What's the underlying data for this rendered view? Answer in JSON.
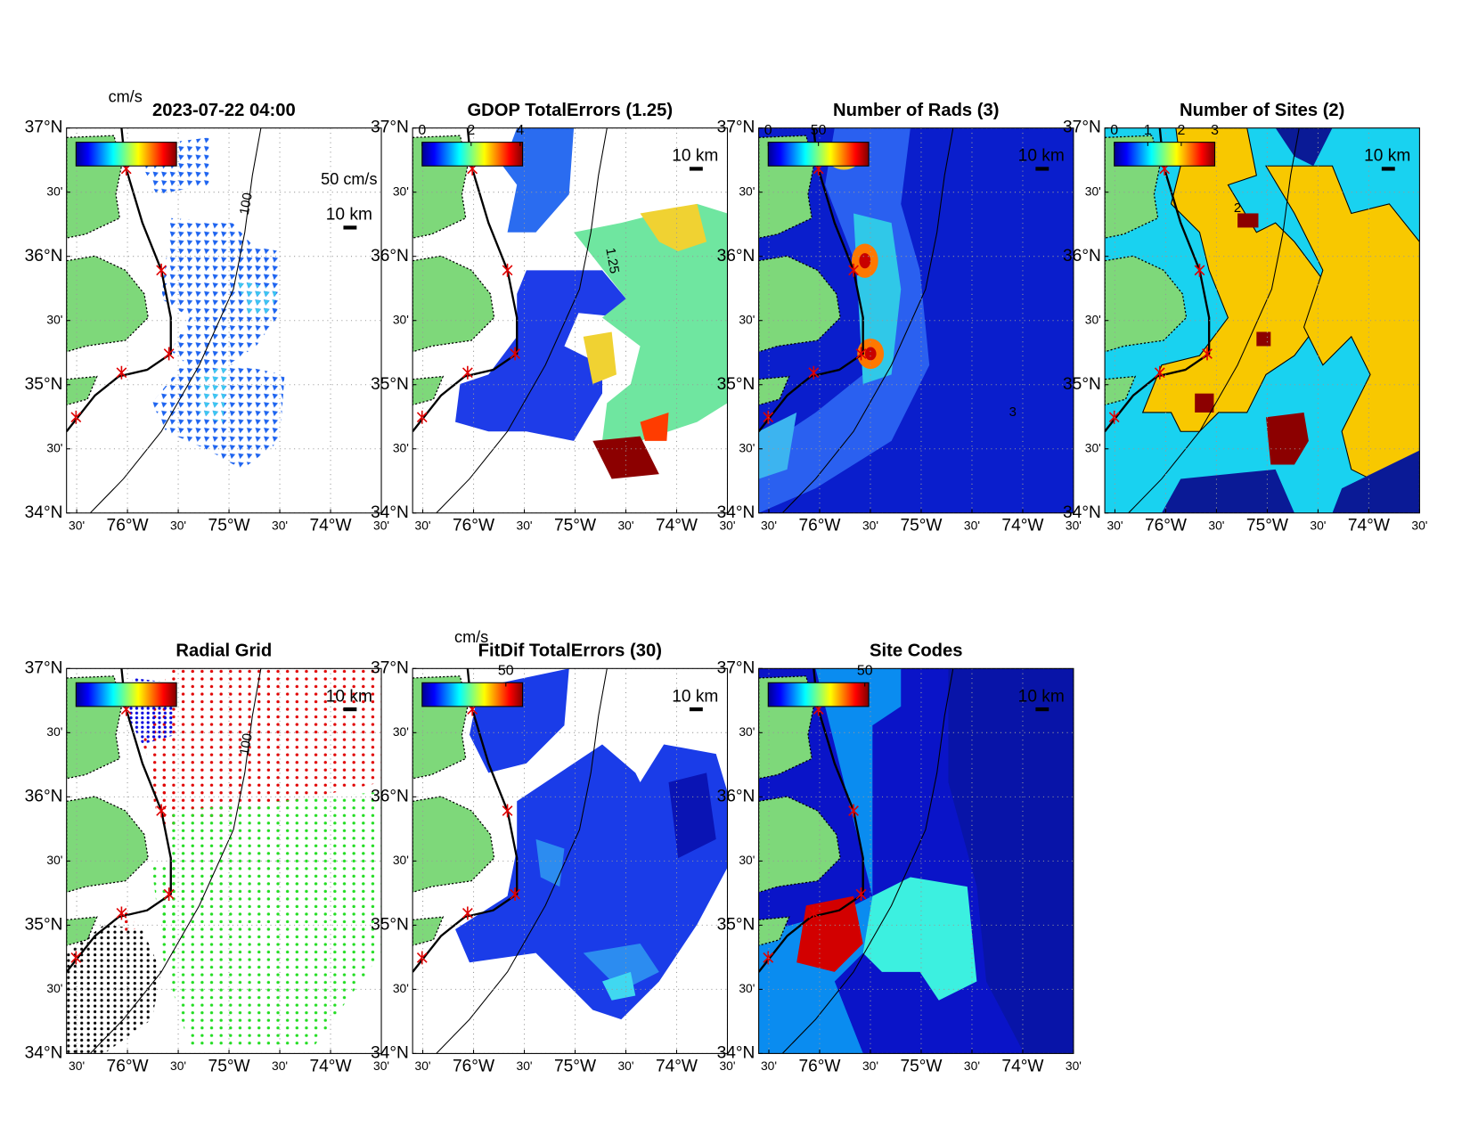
{
  "figure": {
    "xlim": [
      -76.6,
      -73.5
    ],
    "ylim": [
      34,
      37
    ],
    "grid": true,
    "lat_ticks": [
      {
        "value": 34,
        "label": "34°N"
      },
      {
        "value": 34.5,
        "label": "30'"
      },
      {
        "value": 35,
        "label": "35°N"
      },
      {
        "value": 35.5,
        "label": "30'"
      },
      {
        "value": 36,
        "label": "36°N"
      },
      {
        "value": 36.5,
        "label": "30'"
      },
      {
        "value": 37,
        "label": "37°N"
      }
    ],
    "lon_ticks": [
      {
        "value": -76.5,
        "label": "30'"
      },
      {
        "value": -76,
        "label": "76°W"
      },
      {
        "value": -75.5,
        "label": "30'"
      },
      {
        "value": -75,
        "label": "75°W"
      },
      {
        "value": -74.5,
        "label": "30'"
      },
      {
        "value": -74,
        "label": "74°W"
      },
      {
        "value": -73.5,
        "label": "30'"
      }
    ],
    "panels": [
      {
        "title": "2023-07-22 04:00",
        "units": "cm/s",
        "vector_scale": "50 cm/s",
        "scale_bar": "10 km",
        "contour_label": "100"
      },
      {
        "title": "GDOP TotalErrors (1.25)",
        "scale_bar": "10 km",
        "clim": [
          0,
          4.1
        ],
        "cticks": [
          0,
          2,
          4
        ],
        "contour_label": "1.25"
      },
      {
        "title": "Number of Rads (3)",
        "scale_bar": "10 km",
        "clim": [
          0,
          100
        ],
        "cticks": [
          0,
          50
        ],
        "contour_label": "3"
      },
      {
        "title": "Number of Sites (2)",
        "scale_bar": "10 km",
        "clim": [
          0,
          3
        ],
        "cticks": [
          0,
          1,
          2,
          3
        ],
        "contour_label": "2"
      },
      {
        "title": "Radial Grid",
        "scale_bar": "10 km",
        "contour_label": "100"
      },
      {
        "title": "FitDif TotalErrors (30)",
        "units": "cm/s",
        "scale_bar": "10 km",
        "clim": [
          0,
          60
        ],
        "cticks": [
          50
        ]
      },
      {
        "title": "Site Codes",
        "scale_bar": "10 km",
        "clim": [
          0,
          52
        ],
        "cticks": [
          50
        ]
      }
    ]
  }
}
